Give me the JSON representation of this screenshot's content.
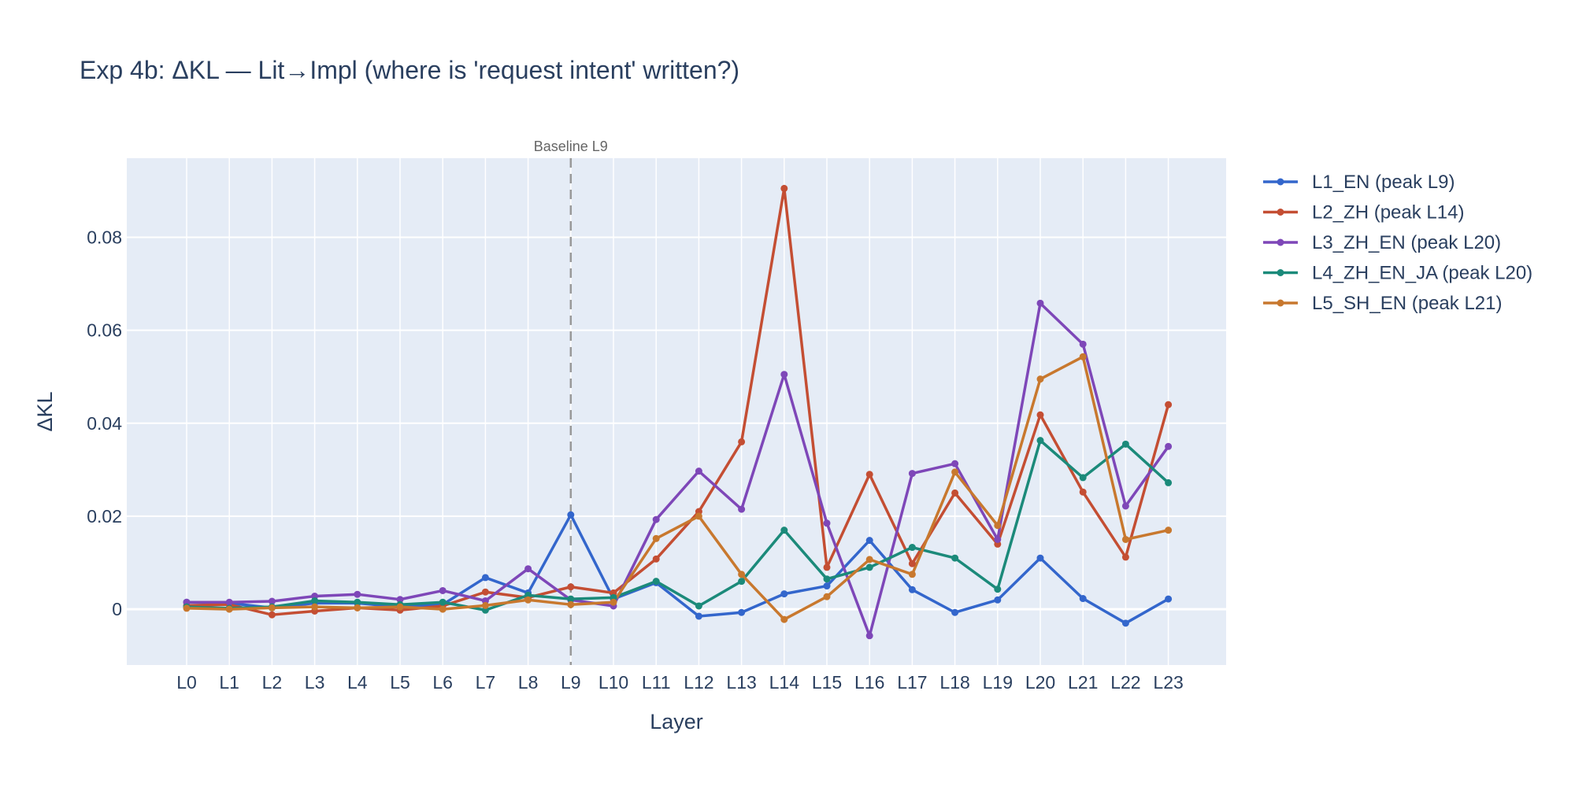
{
  "chart_data": {
    "type": "line",
    "title": "Exp 4b: ΔKL — Lit→Impl (where is 'request intent' written?)",
    "xlabel": "Layer",
    "ylabel": "ΔKL",
    "categories": [
      "L0",
      "L1",
      "L2",
      "L3",
      "L4",
      "L5",
      "L6",
      "L7",
      "L8",
      "L9",
      "L10",
      "L11",
      "L12",
      "L13",
      "L14",
      "L15",
      "L16",
      "L17",
      "L18",
      "L19",
      "L20",
      "L21",
      "L22",
      "L23"
    ],
    "ylim": [
      -0.012,
      0.097
    ],
    "yticks": [
      0,
      0.02,
      0.04,
      0.06,
      0.08
    ],
    "ytick_labels": [
      "0",
      "0.02",
      "0.04",
      "0.06",
      "0.08"
    ],
    "grid": true,
    "legend_position": "right",
    "vline": {
      "category": "L9",
      "label": "Baseline L9",
      "style": "dashed"
    },
    "series": [
      {
        "name": "L1_EN (peak L9)",
        "color": "#3366cc",
        "values": [
          0.0015,
          0.0013,
          0.0003,
          0.0013,
          0.0013,
          0.0005,
          0.001,
          0.0068,
          0.0035,
          0.0203,
          0.0022,
          0.0057,
          -0.0015,
          -0.0007,
          0.0033,
          0.005,
          0.0148,
          0.0042,
          -0.0007,
          0.002,
          0.011,
          0.0023,
          -0.003,
          0.0022
        ]
      },
      {
        "name": "L2_ZH (peak L14)",
        "color": "#c44e33",
        "values": [
          0.0008,
          0.001,
          -0.0012,
          -0.0004,
          0.0003,
          -0.0002,
          0.0007,
          0.0037,
          0.0025,
          0.0048,
          0.0035,
          0.0108,
          0.021,
          0.036,
          0.0905,
          0.009,
          0.029,
          0.0098,
          0.025,
          0.014,
          0.0418,
          0.0252,
          0.0112,
          0.044
        ]
      },
      {
        "name": "L3_ZH_EN (peak L20)",
        "color": "#7e47b8",
        "values": [
          0.0015,
          0.0015,
          0.0017,
          0.0028,
          0.0032,
          0.0021,
          0.004,
          0.0018,
          0.0087,
          0.002,
          0.0007,
          0.0193,
          0.0297,
          0.0215,
          0.0505,
          0.0185,
          -0.0057,
          0.0292,
          0.0313,
          0.015,
          0.0658,
          0.057,
          0.0222,
          0.035
        ]
      },
      {
        "name": "L4_ZH_EN_JA (peak L20)",
        "color": "#1b8a7a",
        "values": [
          0.0005,
          0.0002,
          0.0005,
          0.0018,
          0.0015,
          0.001,
          0.0015,
          -0.0002,
          0.003,
          0.0022,
          0.0025,
          0.006,
          0.0007,
          0.006,
          0.017,
          0.0065,
          0.009,
          0.0133,
          0.011,
          0.0043,
          0.0363,
          0.0283,
          0.0355,
          0.0272
        ]
      },
      {
        "name": "L5_SH_EN (peak L21)",
        "color": "#c8782e",
        "values": [
          0.0002,
          0.0,
          0.0003,
          0.0005,
          0.0003,
          0.0005,
          0.0,
          0.0008,
          0.002,
          0.001,
          0.0015,
          0.0152,
          0.02,
          0.0075,
          -0.0022,
          0.0027,
          0.0107,
          0.0075,
          0.0295,
          0.018,
          0.0495,
          0.0543,
          0.015,
          0.017
        ]
      }
    ]
  }
}
